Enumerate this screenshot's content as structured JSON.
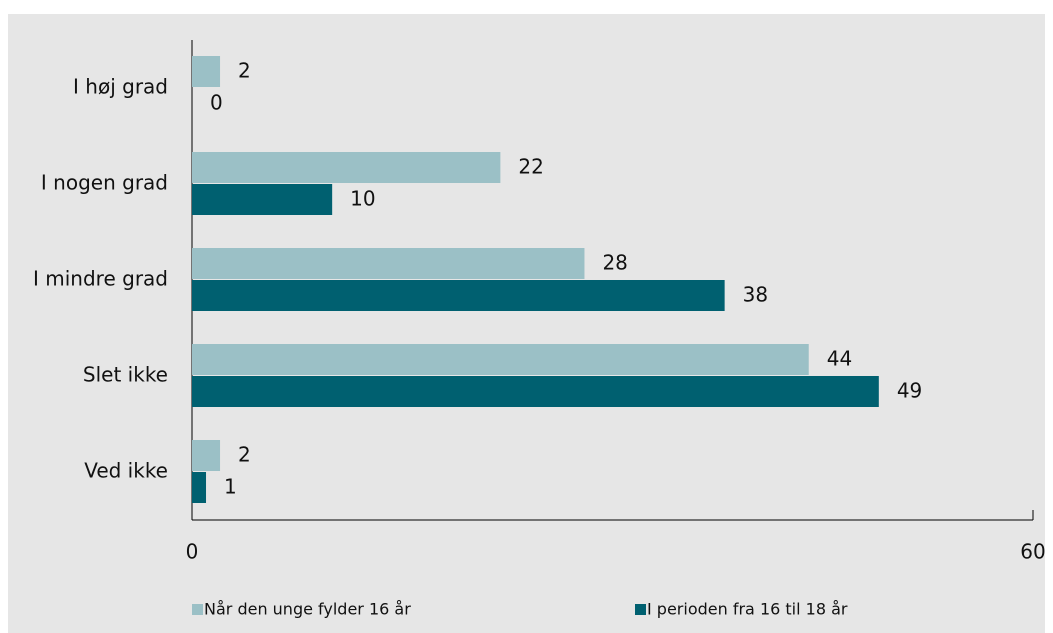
{
  "chart_data": {
    "type": "bar",
    "orientation": "horizontal",
    "categories": [
      "I høj grad",
      "I nogen grad",
      "I mindre grad",
      "Slet ikke",
      "Ved ikke"
    ],
    "series": [
      {
        "name": "Når den unge fylder 16 år",
        "color": "#9bc0c6",
        "values": [
          2,
          22,
          28,
          44,
          2
        ]
      },
      {
        "name": "I perioden fra 16 til 18 år",
        "color": "#006070",
        "values": [
          0,
          10,
          38,
          49,
          1
        ]
      }
    ],
    "xlim": [
      0,
      60
    ],
    "xticks": [
      0,
      60
    ],
    "legend": "bottom"
  }
}
